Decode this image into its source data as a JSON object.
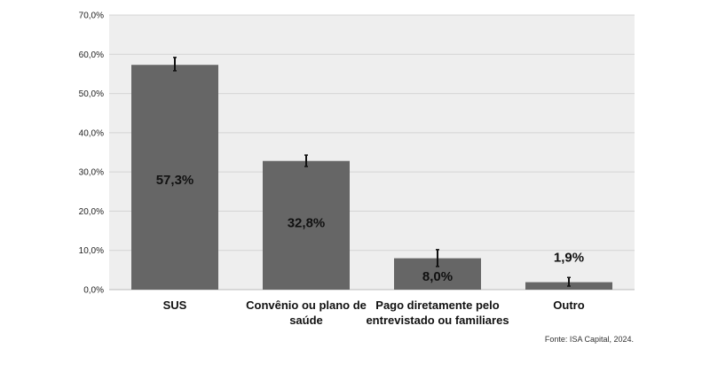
{
  "chart_data": {
    "type": "bar",
    "categories": [
      [
        "SUS"
      ],
      [
        "Convênio ou plano de",
        "saúde"
      ],
      [
        "Pago diretamente pelo",
        "entrevistado ou familiares"
      ],
      [
        "Outro"
      ]
    ],
    "values": [
      57.3,
      32.8,
      8.0,
      1.9
    ],
    "data_labels": [
      "57,3%",
      "32,8%",
      "8,0%",
      "1,9%"
    ],
    "error_bars": [
      [
        55.8,
        59.2
      ],
      [
        31.4,
        34.3
      ],
      [
        5.9,
        10.2
      ],
      [
        0.9,
        3.1
      ]
    ],
    "ylim": [
      0,
      70
    ],
    "yticks": [
      0,
      10,
      20,
      30,
      40,
      50,
      60,
      70
    ],
    "ytick_labels": [
      "0,0%",
      "10,0%",
      "20,0%",
      "30,0%",
      "40,0%",
      "50,0%",
      "60,0%",
      "70,0%"
    ],
    "grid": true,
    "colors": {
      "bar": "#666666",
      "plot_bg": "#eeeeee",
      "grid": "#d4d4d4",
      "error": "#111111"
    }
  },
  "source": "Fonte: ISA Capital, 2024."
}
